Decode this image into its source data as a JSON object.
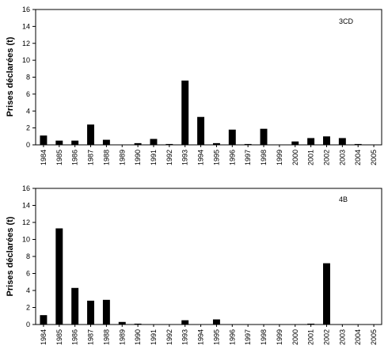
{
  "chart_data": [
    {
      "type": "bar",
      "panel_label": "3CD",
      "ylabel": "Prises déclarées (t)",
      "ylim": [
        0,
        16
      ],
      "yticks": [
        0,
        2,
        4,
        6,
        8,
        10,
        12,
        14,
        16
      ],
      "grid": false,
      "categories": [
        "1984",
        "1985",
        "1986",
        "1987",
        "1988",
        "1989",
        "1990",
        "1991",
        "1992",
        "1993",
        "1994",
        "1995",
        "1996",
        "1997",
        "1998",
        "1999",
        "2000",
        "2001",
        "2002",
        "2003",
        "2004",
        "2005"
      ],
      "values": [
        1.1,
        0.5,
        0.5,
        2.4,
        0.6,
        0,
        0.2,
        0.7,
        0.1,
        7.6,
        3.3,
        0.2,
        1.8,
        0.1,
        1.9,
        0,
        0.4,
        0.8,
        1.0,
        0.8,
        0.1,
        0
      ]
    },
    {
      "type": "bar",
      "panel_label": "4B",
      "ylabel": "Prises déclarées (t)",
      "ylim": [
        0,
        16
      ],
      "yticks": [
        0,
        2,
        4,
        6,
        8,
        10,
        12,
        14,
        16
      ],
      "grid": false,
      "categories": [
        "1984",
        "1985",
        "1986",
        "1987",
        "1988",
        "1989",
        "1990",
        "1991",
        "1992",
        "1993",
        "1994",
        "1995",
        "1996",
        "1997",
        "1998",
        "1999",
        "2000",
        "2001",
        "2002",
        "2003",
        "2004",
        "2005"
      ],
      "values": [
        1.1,
        11.3,
        4.3,
        2.8,
        2.9,
        0.3,
        0.1,
        0,
        0,
        0.5,
        0,
        0.6,
        0,
        0,
        0,
        0,
        0,
        0.1,
        7.2,
        0,
        0,
        0
      ]
    }
  ]
}
